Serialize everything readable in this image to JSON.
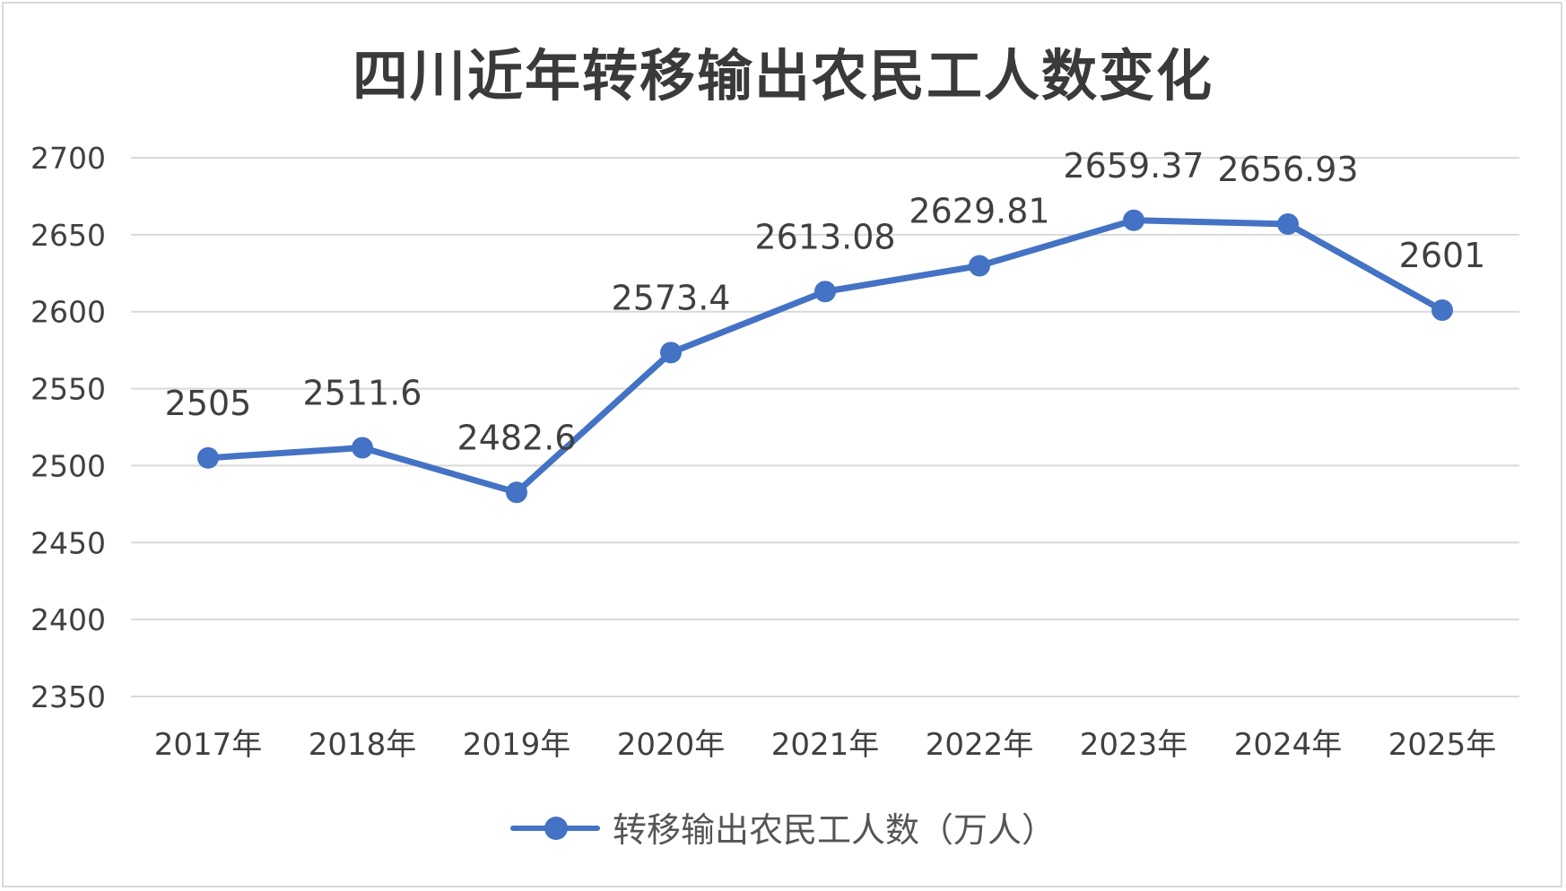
{
  "chart_data": {
    "type": "line",
    "title": "四川近年转移输出农民工人数变化",
    "categories": [
      "2017年",
      "2018年",
      "2019年",
      "2020年",
      "2021年",
      "2022年",
      "2023年",
      "2024年",
      "2025年"
    ],
    "series": [
      {
        "name": "转移输出农民工人数（万人）",
        "values": [
          2505,
          2511.6,
          2482.6,
          2573.4,
          2613.08,
          2629.81,
          2659.37,
          2656.93,
          2601
        ],
        "labels": [
          "2505",
          "2511.6",
          "2482.6",
          "2573.4",
          "2613.08",
          "2629.81",
          "2659.37",
          "2656.93",
          "2601"
        ]
      }
    ],
    "yticks": [
      2350,
      2400,
      2450,
      2500,
      2550,
      2600,
      2650,
      2700
    ],
    "ylim": [
      2350,
      2700
    ],
    "grid": true,
    "legend_position": "bottom",
    "colors": {
      "series": "#4472c4",
      "grid": "#d9d9d9",
      "text": "#404040"
    }
  }
}
